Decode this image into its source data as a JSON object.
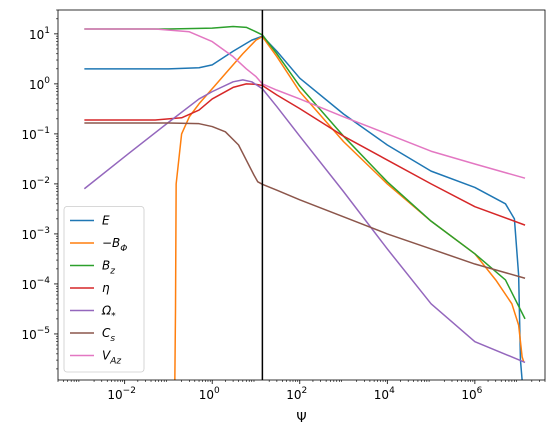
{
  "chart_data": {
    "type": "line",
    "xlabel": "Ψ",
    "ylabel": "",
    "xscale": "log",
    "yscale": "log",
    "xlim": [
      0.0003,
      40000000
    ],
    "ylim": [
      1.2e-06,
      30
    ],
    "grid": false,
    "legend_position": "lower-left",
    "vline_x": 14,
    "x_ticks": [
      {
        "value": 0.01,
        "base": "10",
        "exp": "−2"
      },
      {
        "value": 1,
        "base": "10",
        "exp": "0"
      },
      {
        "value": 100,
        "base": "10",
        "exp": "2"
      },
      {
        "value": 10000,
        "base": "10",
        "exp": "4"
      },
      {
        "value": 1000000,
        "base": "10",
        "exp": "6"
      }
    ],
    "y_ticks": [
      {
        "value": 10,
        "base": "10",
        "exp": "1"
      },
      {
        "value": 1,
        "base": "10",
        "exp": "0"
      },
      {
        "value": 0.1,
        "base": "10",
        "exp": "−1"
      },
      {
        "value": 0.01,
        "base": "10",
        "exp": "−2"
      },
      {
        "value": 0.001,
        "base": "10",
        "exp": "−3"
      },
      {
        "value": 0.0001,
        "base": "10",
        "exp": "−4"
      },
      {
        "value": 1e-05,
        "base": "10",
        "exp": "−5"
      }
    ],
    "series": [
      {
        "name": "E",
        "legend_main": "E",
        "legend_sub": "",
        "color": "#1f77b4",
        "points": [
          [
            0.0012,
            2.0
          ],
          [
            0.1,
            2.0
          ],
          [
            0.5,
            2.1
          ],
          [
            1,
            2.4
          ],
          [
            3,
            4.5
          ],
          [
            8,
            7.5
          ],
          [
            14,
            9.0
          ],
          [
            30,
            4.5
          ],
          [
            100,
            1.3
          ],
          [
            1000,
            0.25
          ],
          [
            10000,
            0.06
          ],
          [
            100000,
            0.018
          ],
          [
            1000000,
            0.0085
          ],
          [
            5000000,
            0.004
          ],
          [
            8000000,
            0.002
          ],
          [
            10000000,
            0.00015
          ],
          [
            11000000,
            3e-06
          ],
          [
            12000000,
            1.2e-06
          ]
        ]
      },
      {
        "name": "−BΦ",
        "legend_main": "−B",
        "legend_sub": "Φ",
        "color": "#ff7f0e",
        "points": [
          [
            0.14,
            1.2e-06
          ],
          [
            0.145,
            3e-05
          ],
          [
            0.15,
            0.01
          ],
          [
            0.2,
            0.1
          ],
          [
            0.3,
            0.22
          ],
          [
            0.5,
            0.4
          ],
          [
            1,
            0.8
          ],
          [
            2,
            1.6
          ],
          [
            5,
            4
          ],
          [
            10,
            7.5
          ],
          [
            14,
            8.8
          ],
          [
            30,
            3.5
          ],
          [
            100,
            0.7
          ],
          [
            1000,
            0.07
          ],
          [
            10000,
            0.01
          ],
          [
            100000,
            0.0018
          ],
          [
            1000000,
            0.0004
          ],
          [
            3000000,
            0.00012
          ],
          [
            7000000,
            4e-05
          ],
          [
            10000000,
            1.5e-05
          ],
          [
            12000000,
            3.5e-06
          ],
          [
            13000000,
            2.8e-06
          ]
        ]
      },
      {
        "name": "Bz",
        "legend_main": "B",
        "legend_sub": "z",
        "color": "#2ca02c",
        "points": [
          [
            0.0012,
            12.5
          ],
          [
            0.1,
            12.5
          ],
          [
            1,
            13
          ],
          [
            3,
            14
          ],
          [
            6,
            13.5
          ],
          [
            10,
            11
          ],
          [
            14,
            9.5
          ],
          [
            30,
            4
          ],
          [
            100,
            0.9
          ],
          [
            1000,
            0.09
          ],
          [
            10000,
            0.011
          ],
          [
            100000,
            0.0018
          ],
          [
            1000000,
            0.0004
          ],
          [
            5000000,
            0.00012
          ],
          [
            14000000,
            2e-05
          ]
        ]
      },
      {
        "name": "η",
        "legend_main": "η",
        "legend_sub": "",
        "color": "#d62728",
        "points": [
          [
            0.0012,
            0.19
          ],
          [
            0.05,
            0.19
          ],
          [
            0.2,
            0.21
          ],
          [
            0.5,
            0.3
          ],
          [
            1,
            0.5
          ],
          [
            3,
            0.85
          ],
          [
            6,
            1.0
          ],
          [
            10,
            0.98
          ],
          [
            14,
            0.93
          ],
          [
            30,
            0.6
          ],
          [
            100,
            0.32
          ],
          [
            1000,
            0.09
          ],
          [
            10000,
            0.03
          ],
          [
            100000,
            0.01
          ],
          [
            1000000,
            0.0035
          ],
          [
            14000000,
            0.0015
          ]
        ]
      },
      {
        "name": "Ω*",
        "legend_main": "Ω",
        "legend_sub": "*",
        "color": "#9467bd",
        "points": [
          [
            0.0012,
            0.008
          ],
          [
            0.01,
            0.035
          ],
          [
            0.1,
            0.17
          ],
          [
            0.5,
            0.5
          ],
          [
            1,
            0.7
          ],
          [
            3,
            1.1
          ],
          [
            5,
            1.2
          ],
          [
            8,
            1.1
          ],
          [
            14,
            0.8
          ],
          [
            30,
            0.35
          ],
          [
            100,
            0.09
          ],
          [
            1000,
            0.007
          ],
          [
            10000,
            0.0005
          ],
          [
            100000,
            4e-05
          ],
          [
            1000000,
            7e-06
          ],
          [
            14000000,
            2.7e-06
          ]
        ]
      },
      {
        "name": "Cs",
        "legend_main": "C",
        "legend_sub": "s",
        "color": "#8c564b",
        "points": [
          [
            0.0012,
            0.165
          ],
          [
            0.1,
            0.165
          ],
          [
            0.5,
            0.16
          ],
          [
            1,
            0.14
          ],
          [
            2,
            0.11
          ],
          [
            4,
            0.06
          ],
          [
            6,
            0.03
          ],
          [
            9,
            0.015
          ],
          [
            11,
            0.011
          ],
          [
            14,
            0.0098
          ],
          [
            30,
            0.0075
          ],
          [
            100,
            0.0048
          ],
          [
            1000,
            0.0022
          ],
          [
            10000,
            0.001
          ],
          [
            100000,
            0.0005
          ],
          [
            1000000,
            0.00025
          ],
          [
            14000000,
            0.00013
          ]
        ]
      },
      {
        "name": "VAz",
        "legend_main": "V",
        "legend_sub": "Az",
        "color": "#e377c2",
        "points": [
          [
            0.0012,
            12.5
          ],
          [
            0.05,
            12.5
          ],
          [
            0.3,
            11
          ],
          [
            1,
            7
          ],
          [
            3,
            3.5
          ],
          [
            6,
            2
          ],
          [
            10,
            1.4
          ],
          [
            14,
            1.0
          ],
          [
            30,
            0.75
          ],
          [
            100,
            0.5
          ],
          [
            1000,
            0.22
          ],
          [
            10000,
            0.1
          ],
          [
            100000,
            0.045
          ],
          [
            1000000,
            0.025
          ],
          [
            14000000,
            0.013
          ]
        ]
      }
    ]
  }
}
